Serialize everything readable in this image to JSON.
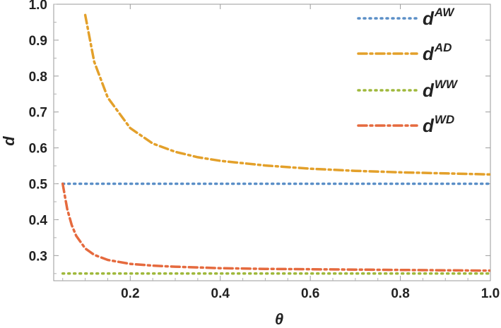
{
  "chart_data": {
    "type": "line",
    "xlabel": "θ",
    "ylabel": "d",
    "xlim": [
      0.03,
      1.0
    ],
    "ylim": [
      0.23,
      1.0
    ],
    "xticks": [
      0.2,
      0.4,
      0.6,
      0.8,
      1.0
    ],
    "xtick_labels": [
      "0.2",
      "0.4",
      "0.6",
      "0.8",
      "1.0"
    ],
    "yticks": [
      0.3,
      0.4,
      0.5,
      0.6,
      0.7,
      0.8,
      0.9,
      1.0
    ],
    "ytick_labels": [
      "0.3",
      "0.4",
      "0.5",
      "0.6",
      "0.7",
      "0.8",
      "0.9",
      "1.0"
    ],
    "legend_position": "top-right",
    "series": [
      {
        "legend_base": "d",
        "legend_sup": "AW",
        "color": "#5b8fc7",
        "style": "dotted",
        "x": [
          0.05,
          0.1,
          0.2,
          0.3,
          0.4,
          0.5,
          0.6,
          0.7,
          0.8,
          0.9,
          1.0
        ],
        "y": [
          0.5,
          0.5,
          0.5,
          0.5,
          0.5,
          0.5,
          0.5,
          0.5,
          0.5,
          0.5,
          0.5
        ]
      },
      {
        "legend_base": "d",
        "legend_sup": "AD",
        "color": "#e3a02a",
        "style": "dashdot",
        "x": [
          0.1,
          0.12,
          0.15,
          0.2,
          0.25,
          0.3,
          0.35,
          0.4,
          0.5,
          0.6,
          0.7,
          0.8,
          0.9,
          1.0
        ],
        "y": [
          0.97,
          0.84,
          0.74,
          0.655,
          0.612,
          0.589,
          0.574,
          0.564,
          0.551,
          0.542,
          0.536,
          0.532,
          0.529,
          0.526
        ]
      },
      {
        "legend_base": "d",
        "legend_sup": "WW",
        "color": "#9fb83b",
        "style": "dotted",
        "x": [
          0.05,
          0.1,
          0.2,
          0.3,
          0.4,
          0.5,
          0.6,
          0.7,
          0.8,
          0.9,
          1.0
        ],
        "y": [
          0.25,
          0.25,
          0.25,
          0.25,
          0.25,
          0.25,
          0.25,
          0.25,
          0.25,
          0.25,
          0.25
        ]
      },
      {
        "legend_base": "d",
        "legend_sup": "WD",
        "color": "#e56a3e",
        "style": "dashdot",
        "x": [
          0.05,
          0.06,
          0.07,
          0.08,
          0.1,
          0.12,
          0.15,
          0.2,
          0.25,
          0.3,
          0.4,
          0.5,
          0.6,
          0.7,
          0.8,
          0.9,
          1.0
        ],
        "y": [
          0.5,
          0.43,
          0.385,
          0.355,
          0.32,
          0.302,
          0.288,
          0.277,
          0.272,
          0.269,
          0.265,
          0.263,
          0.262,
          0.261,
          0.26,
          0.259,
          0.258
        ]
      }
    ]
  }
}
